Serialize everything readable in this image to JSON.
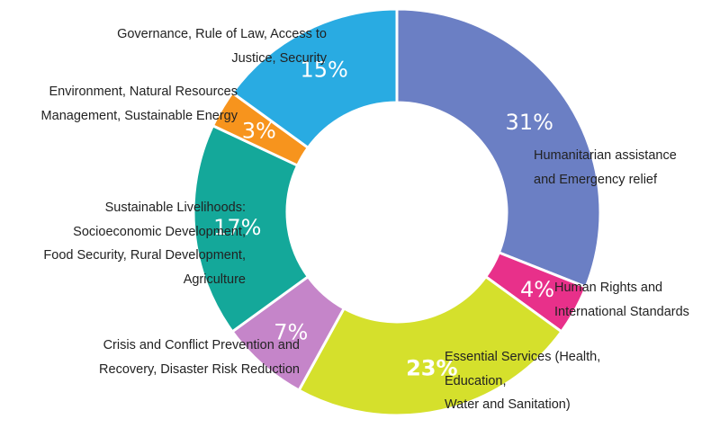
{
  "chart_data": {
    "type": "pie",
    "variant": "donut",
    "start": "top",
    "direction": "clockwise",
    "slices": [
      {
        "value": 31,
        "label": "31%",
        "color": "#6b7fc4",
        "bold": false,
        "category": [
          "Humanitarian assistance",
          "and Emergency relief"
        ]
      },
      {
        "value": 4,
        "label": "4%",
        "color": "#e8308a",
        "bold": false,
        "category": [
          "Human Rights and",
          "International Standards"
        ]
      },
      {
        "value": 23,
        "label": "23%",
        "color": "#d5e02c",
        "bold": true,
        "category": [
          "Essential Services (Health,",
          "Education,",
          "Water and Sanitation)"
        ]
      },
      {
        "value": 7,
        "label": "7%",
        "color": "#c585c9",
        "bold": false,
        "category": [
          "Crisis and Conflict Prevention and",
          "Recovery, Disaster Risk Reduction"
        ]
      },
      {
        "value": 17,
        "label": "17%",
        "color": "#14a89a",
        "bold": false,
        "category": [
          "Sustainable Livelihoods:",
          "Socioeconomic Development,",
          "Food Security, Rural Development,",
          "Agriculture"
        ]
      },
      {
        "value": 3,
        "label": "3%",
        "color": "#f7941d",
        "bold": false,
        "category": [
          "Environment, Natural Resources",
          "Management, Sustainable Energy"
        ]
      },
      {
        "value": 15,
        "label": "15%",
        "color": "#29abe2",
        "bold": false,
        "category": [
          "Governance, Rule of Law, Access to",
          "Justice, Security"
        ]
      }
    ]
  }
}
